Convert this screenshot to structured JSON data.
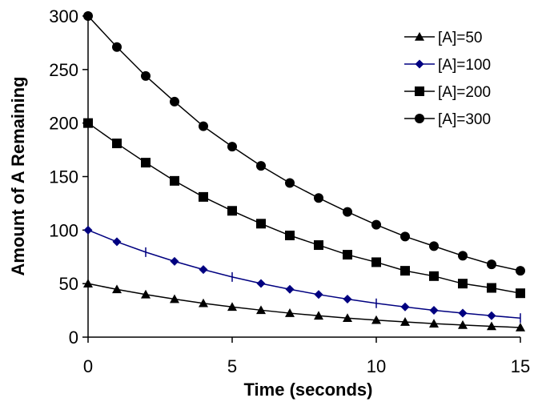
{
  "chart_data": {
    "type": "line",
    "xlabel": "Time (seconds)",
    "ylabel": "Amount of A Remaining",
    "xlim": [
      0,
      15
    ],
    "ylim": [
      0,
      300
    ],
    "x_ticks": [
      0,
      5,
      10,
      15
    ],
    "y_ticks": [
      0,
      50,
      100,
      150,
      200,
      250,
      300
    ],
    "grid": false,
    "legend_position": "top-right",
    "x": [
      0,
      1,
      2,
      3,
      4,
      5,
      6,
      7,
      8,
      9,
      10,
      11,
      12,
      13,
      14,
      15
    ],
    "series": [
      {
        "name": "[A]=50",
        "marker": "triangle",
        "color": "#000000",
        "values": [
          50,
          44.6,
          39.8,
          35.5,
          31.6,
          28.2,
          25.2,
          22.4,
          20.0,
          17.8,
          15.9,
          14.2,
          12.6,
          11.3,
          10.1,
          9.0
        ]
      },
      {
        "name": "[A]=100",
        "marker": "diamond",
        "color": "#000080",
        "values": [
          100,
          89.1,
          79.4,
          70.8,
          63.1,
          56.2,
          50.1,
          44.7,
          39.8,
          35.5,
          31.6,
          28.2,
          25.1,
          22.4,
          20.0,
          17.8
        ]
      },
      {
        "name": "[A]=200",
        "marker": "square",
        "color": "#000000",
        "values": [
          200,
          181,
          163,
          146,
          131,
          118,
          106,
          95,
          86,
          77,
          70,
          62,
          57,
          50,
          46,
          41
        ]
      },
      {
        "name": "[A]=300",
        "marker": "circle",
        "color": "#000000",
        "values": [
          300,
          271,
          244,
          220,
          197,
          178,
          160,
          144,
          130,
          117,
          105,
          94,
          85,
          76,
          68,
          62
        ]
      }
    ]
  }
}
